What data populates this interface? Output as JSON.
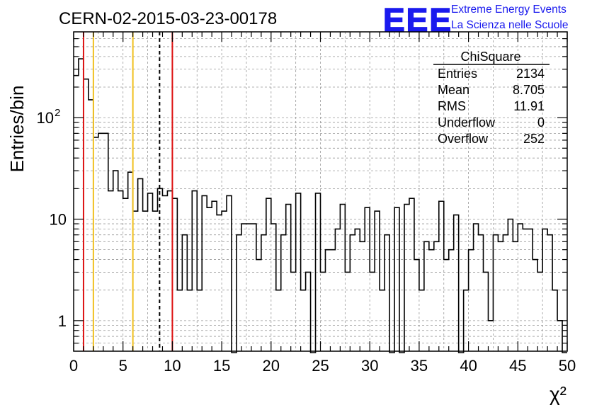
{
  "header": {
    "run_title": "CERN-02-2015-03-23-00178",
    "logo_text": "EEE",
    "org_line1": "Extreme Energy Events",
    "org_line2": "La Scienza nelle Scuole"
  },
  "stats_box": {
    "title": "ChiSquare",
    "rows": [
      {
        "label": "Entries",
        "value": "2134"
      },
      {
        "label": "Mean",
        "value": "8.705"
      },
      {
        "label": "RMS",
        "value": "11.91"
      },
      {
        "label": "Underflow",
        "value": "0"
      },
      {
        "label": "Overflow",
        "value": "252"
      }
    ]
  },
  "colors": {
    "red_line": "#dd1111",
    "yellow_line": "#f0c020",
    "logo_blue": "#1a1aee",
    "grid": "#999999"
  },
  "chart_data": {
    "type": "bar",
    "histogram": "step",
    "xlabel": "χ²",
    "ylabel": "Entries/bin",
    "xlim": [
      0,
      50
    ],
    "ylim": [
      0.5,
      700
    ],
    "y_scale": "log",
    "grid": true,
    "x_ticks": [
      "0",
      "5",
      "10",
      "15",
      "20",
      "25",
      "30",
      "35",
      "40",
      "45",
      "50"
    ],
    "y_ticks": [
      {
        "value": 1,
        "label": "1"
      },
      {
        "value": 10,
        "label": "10"
      },
      {
        "value": 100,
        "label": "10",
        "sup": "2"
      }
    ],
    "bin_width": 0.5,
    "bin_start": 0,
    "counts": [
      260,
      380,
      240,
      150,
      64,
      70,
      70,
      19,
      30,
      19,
      16,
      29,
      12,
      25,
      12,
      18,
      12,
      20,
      17,
      19,
      16,
      2,
      7,
      2,
      19,
      2,
      17,
      13,
      15,
      11,
      12,
      17,
      0,
      7,
      9,
      9,
      9,
      4,
      7,
      16,
      9,
      2,
      7,
      14,
      3,
      18,
      2,
      3,
      0,
      18,
      3,
      5,
      5,
      8,
      14,
      3,
      7,
      8,
      6,
      13,
      3,
      12,
      2,
      7,
      0,
      13,
      0,
      14,
      16,
      4,
      2,
      6,
      5,
      6,
      15,
      4,
      5,
      11,
      0,
      2,
      5,
      9,
      7,
      3,
      1,
      7,
      6,
      7,
      10,
      6,
      9,
      8,
      8,
      4,
      3,
      8,
      7,
      2,
      1,
      0
    ],
    "vertical_lines": [
      {
        "x": 1,
        "color": "red",
        "style": "solid"
      },
      {
        "x": 2,
        "color": "yellow",
        "style": "solid"
      },
      {
        "x": 6,
        "color": "yellow",
        "style": "solid"
      },
      {
        "x": 8.705,
        "color": "black",
        "style": "dashed"
      },
      {
        "x": 10,
        "color": "red",
        "style": "solid"
      }
    ]
  }
}
